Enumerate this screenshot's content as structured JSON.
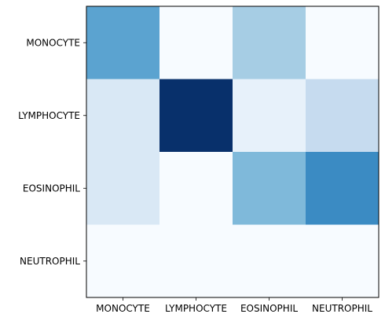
{
  "chart_data": {
    "type": "heatmap",
    "title": "",
    "xlabel": "",
    "ylabel": "",
    "x_categories": [
      "MONOCYTE",
      "LYMPHOCYTE",
      "EOSINOPHIL",
      "NEUTROPHIL"
    ],
    "y_categories": [
      "MONOCYTE",
      "LYMPHOCYTE",
      "EOSINOPHIL",
      "NEUTROPHIL"
    ],
    "values": [
      [
        0.55,
        0.0,
        0.35,
        0.0
      ],
      [
        0.15,
        1.0,
        0.08,
        0.25
      ],
      [
        0.15,
        0.0,
        0.45,
        0.65
      ],
      [
        0.0,
        0.0,
        0.0,
        0.0
      ]
    ],
    "colormap": "Blues",
    "colormap_stops": [
      "#f7fbff",
      "#deebf7",
      "#c6dbef",
      "#9ecae1",
      "#6baed6",
      "#4292c6",
      "#2171b5",
      "#08519c",
      "#08306b"
    ],
    "frame_color": "#000000"
  }
}
